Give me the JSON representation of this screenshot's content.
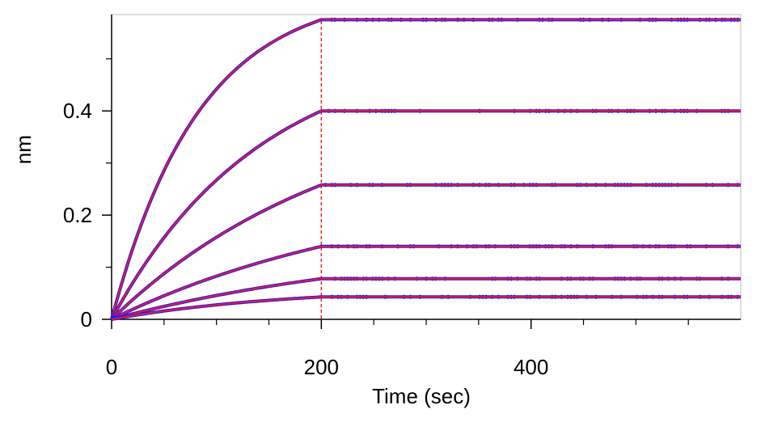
{
  "chart_data": {
    "type": "line",
    "title": "",
    "xlabel": "Time (sec)",
    "ylabel": "nm",
    "xlim": [
      0,
      600
    ],
    "ylim": [
      0,
      0.585
    ],
    "x_ticks": [
      0,
      200,
      400
    ],
    "y_ticks": [
      0,
      0.2,
      0.4
    ],
    "x_tick_labels": [
      "0",
      "200",
      "400"
    ],
    "y_tick_labels": [
      "0",
      "0.2",
      "0.4"
    ],
    "x_minor_ticks": [
      50,
      100,
      150,
      250,
      300,
      350,
      450,
      500,
      550
    ],
    "y_minor_ticks": [
      0.1,
      0.3,
      0.5
    ],
    "association_end_marker_x": 200,
    "grid": false,
    "legend": "none",
    "colors": {
      "raw_data": "#1a1aff",
      "fit": "#ff1a1a",
      "axis": "#000000"
    },
    "series": [
      {
        "plateau": 0.575,
        "rate": 0.012
      },
      {
        "plateau": 0.4,
        "rate": 0.007
      },
      {
        "plateau": 0.258,
        "rate": 0.0045
      },
      {
        "plateau": 0.14,
        "rate": 0.0037
      },
      {
        "plateau": 0.078,
        "rate": 0.0035
      },
      {
        "plateau": 0.043,
        "rate": 0.006
      }
    ]
  }
}
